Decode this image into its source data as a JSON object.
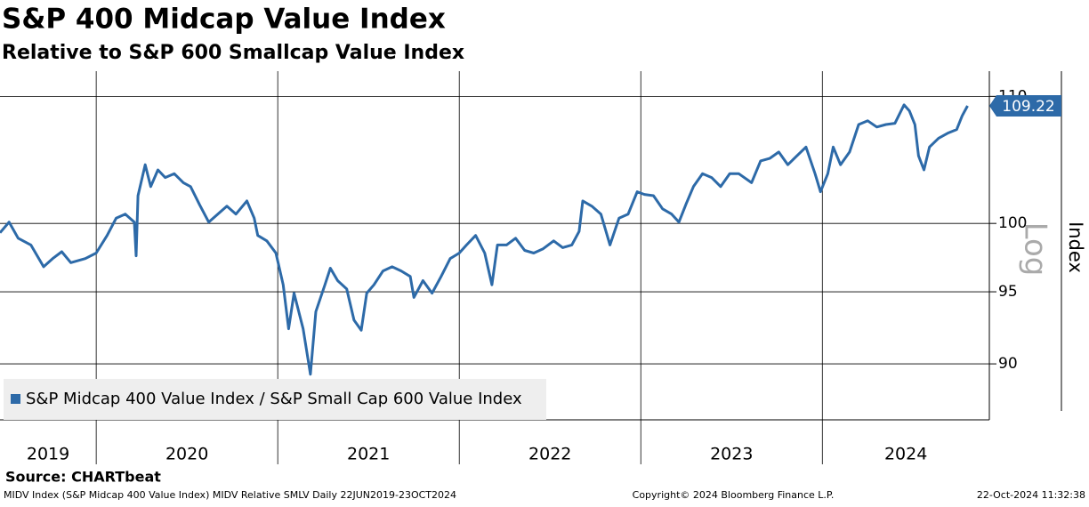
{
  "chart_data": {
    "type": "line",
    "title": "S&P 400 Midcap Value Index",
    "subtitle": "Relative to S&P 600 Smallcap Value Index",
    "ylabel": "Index",
    "scale_note": "Log",
    "log_scale": true,
    "grid": true,
    "legend": "bottom-left",
    "source": "Source: CHARTbeat",
    "footer_left": "MIDV Index (S&P Midcap 400 Value Index) MIDV Relative SMLV  Daily 22JUN2019-23OCT2024",
    "footer_center": "Copyright© 2024 Bloomberg Finance L.P.",
    "footer_right": "22-Oct-2024 11:32:38",
    "xlim": [
      2019.47,
      2024.92
    ],
    "xticks": [
      2020,
      2021,
      2022,
      2023,
      2024
    ],
    "year_labels": [
      "2019",
      "2020",
      "2021",
      "2022",
      "2023",
      "2024"
    ],
    "ylim": [
      86.3,
      112.1
    ],
    "yticks": [
      90,
      95,
      100,
      110
    ],
    "x": [
      2019.47,
      2019.52,
      2019.57,
      2019.64,
      2019.71,
      2019.76,
      2019.81,
      2019.86,
      2019.94,
      2020.0,
      2020.06,
      2020.11,
      2020.16,
      2020.21,
      2020.22,
      2020.23,
      2020.27,
      2020.3,
      2020.34,
      2020.38,
      2020.43,
      2020.48,
      2020.52,
      2020.57,
      2020.62,
      2020.67,
      2020.72,
      2020.77,
      2020.83,
      2020.87,
      2020.89,
      2020.94,
      2020.99,
      2021.03,
      2021.06,
      2021.09,
      2021.14,
      2021.18,
      2021.21,
      2021.26,
      2021.29,
      2021.33,
      2021.38,
      2021.42,
      2021.46,
      2021.49,
      2021.53,
      2021.58,
      2021.63,
      2021.68,
      2021.73,
      2021.75,
      2021.8,
      2021.85,
      2021.9,
      2021.95,
      2022.0,
      2022.04,
      2022.09,
      2022.14,
      2022.18,
      2022.21,
      2022.26,
      2022.31,
      2022.36,
      2022.41,
      2022.46,
      2022.52,
      2022.57,
      2022.62,
      2022.66,
      2022.68,
      2022.73,
      2022.78,
      2022.83,
      2022.88,
      2022.93,
      2022.98,
      2023.02,
      2023.07,
      2023.12,
      2023.17,
      2023.21,
      2023.25,
      2023.29,
      2023.34,
      2023.39,
      2023.44,
      2023.49,
      2023.54,
      2023.61,
      2023.66,
      2023.71,
      2023.76,
      2023.81,
      2023.86,
      2023.91,
      2023.96,
      2023.99,
      2024.03,
      2024.06,
      2024.1,
      2024.15,
      2024.2,
      2024.25,
      2024.3,
      2024.35,
      2024.4,
      2024.45,
      2024.48,
      2024.51,
      2024.53,
      2024.56,
      2024.59,
      2024.64,
      2024.69,
      2024.74,
      2024.77,
      2024.8
    ],
    "series": [
      {
        "name": "S&P Midcap 400 Value Index / S&P Small Cap 600 Value Index",
        "color": "#2d6aa8",
        "values": [
          99.3,
          100.1,
          98.9,
          98.4,
          96.8,
          97.4,
          97.9,
          97.1,
          97.4,
          97.8,
          99.1,
          100.4,
          100.7,
          100.1,
          97.6,
          102.1,
          104.5,
          102.8,
          104.1,
          103.5,
          103.8,
          103.1,
          102.8,
          101.4,
          100.1,
          100.7,
          101.3,
          100.7,
          101.7,
          100.4,
          99.1,
          98.7,
          97.8,
          95.5,
          92.4,
          94.9,
          92.4,
          89.3,
          93.6,
          95.5,
          96.7,
          95.8,
          95.2,
          93.0,
          92.3,
          94.9,
          95.5,
          96.5,
          96.8,
          96.5,
          96.1,
          94.6,
          95.8,
          94.9,
          96.1,
          97.4,
          97.8,
          98.4,
          99.1,
          97.8,
          95.5,
          98.4,
          98.4,
          98.9,
          98.0,
          97.8,
          98.1,
          98.7,
          98.2,
          98.4,
          99.4,
          101.7,
          101.3,
          100.7,
          98.4,
          100.4,
          100.7,
          102.4,
          102.2,
          102.1,
          101.1,
          100.7,
          100.1,
          101.5,
          102.8,
          103.8,
          103.5,
          102.8,
          103.8,
          103.8,
          103.1,
          104.8,
          105.0,
          105.5,
          104.5,
          105.2,
          105.9,
          103.8,
          102.4,
          103.8,
          105.9,
          104.5,
          105.5,
          107.7,
          108.0,
          107.5,
          107.7,
          107.8,
          109.3,
          108.8,
          107.7,
          105.2,
          104.1,
          105.9,
          106.6,
          107.0,
          107.3,
          108.4,
          109.22
        ]
      }
    ]
  }
}
